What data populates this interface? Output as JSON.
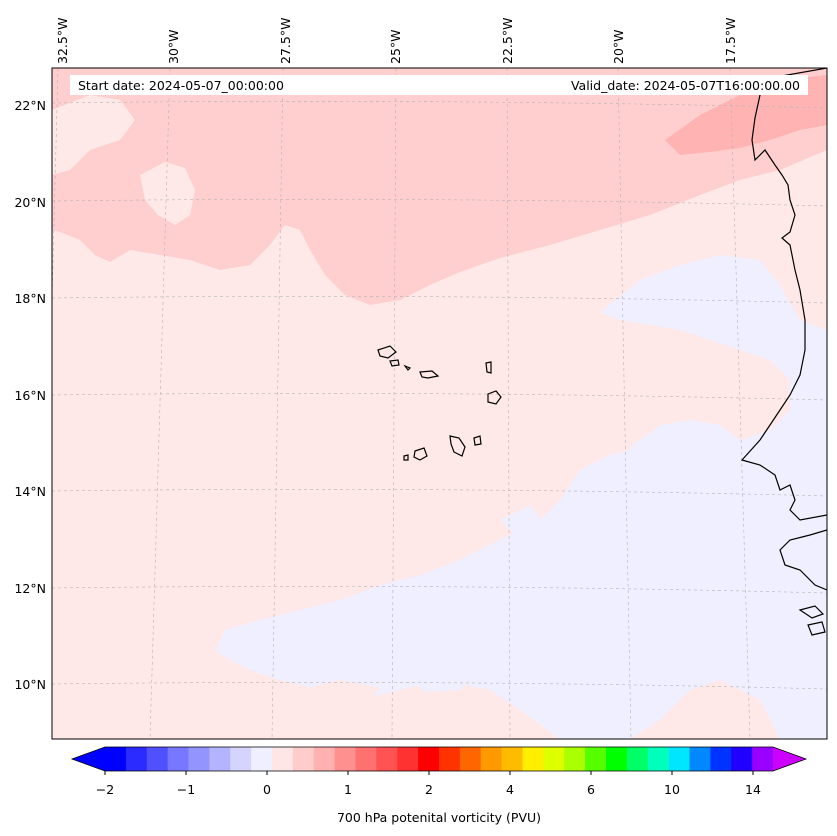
{
  "header": {
    "start_date": "Start date: 2024-05-07_00:00:00",
    "valid_date": "Valid_date: 2024-05-07T16:00:00.00"
  },
  "axes": {
    "lon_labels": [
      "32.5°W",
      "30°W",
      "27.5°W",
      "25°W",
      "22.5°W",
      "20°W",
      "17.5°W"
    ],
    "lat_labels": [
      "22°N",
      "20°N",
      "18°N",
      "16°N",
      "14°N",
      "12°N",
      "10°N"
    ]
  },
  "colorbar": {
    "ticks": [
      "−2",
      "−1",
      "0",
      "1",
      "2",
      "4",
      "6",
      "10",
      "14"
    ],
    "label": "700 hPa potenital vorticity (PVU)",
    "colors": [
      "#0000ff",
      "#2b2bff",
      "#5050ff",
      "#7777ff",
      "#9494ff",
      "#b3b3ff",
      "#d4d4ff",
      "#efefff",
      "#ffe6e6",
      "#ffcccc",
      "#ffb0b0",
      "#ff9090",
      "#ff7070",
      "#ff5252",
      "#ff3232",
      "#ff0000",
      "#ff3300",
      "#ff6600",
      "#ff9900",
      "#ffbb00",
      "#ffee00",
      "#ddff00",
      "#aaff00",
      "#55ff00",
      "#00ff00",
      "#00ff66",
      "#00ffbb",
      "#00e6ff",
      "#0088ff",
      "#0033ff",
      "#2200ff",
      "#9900ff"
    ],
    "extend_low_color": "#0000ff",
    "extend_high_color": "#cc00ff"
  },
  "map": {
    "background_color": "#ffe8e8",
    "light_pink": "#ffcfcf",
    "mid_pink": "#ffb3b3",
    "pale_blue": "#efefff",
    "coast_color": "#000000"
  }
}
